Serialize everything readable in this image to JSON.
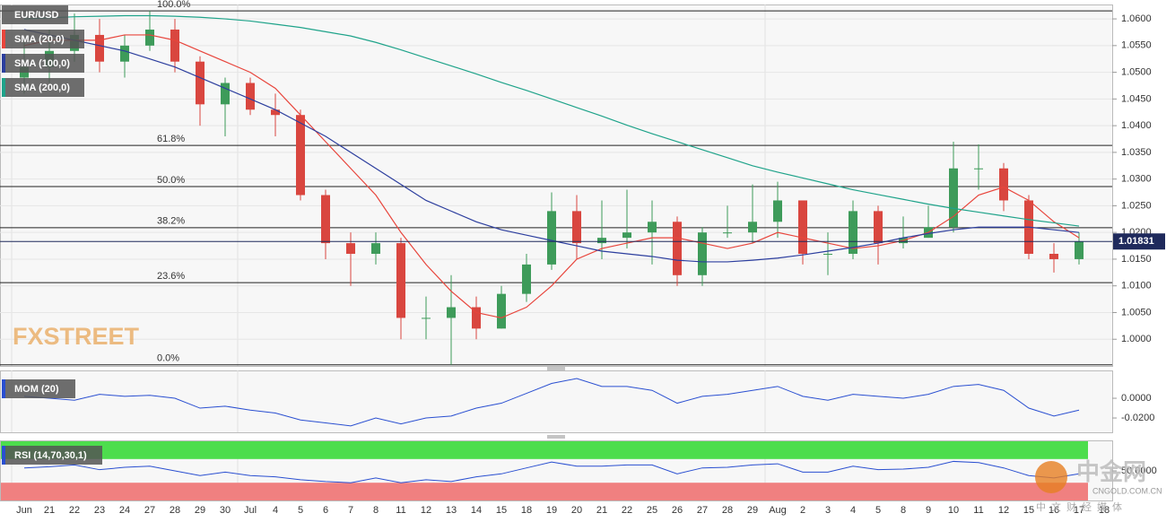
{
  "chart_data": [
    {
      "type": "candlestick",
      "symbol": "EUR/USD",
      "categories": [
        "Jun",
        "21",
        "22",
        "23",
        "24",
        "27",
        "28",
        "29",
        "30",
        "Jul",
        "4",
        "5",
        "6",
        "7",
        "8",
        "11",
        "12",
        "13",
        "14",
        "15",
        "18",
        "19",
        "20",
        "21",
        "22",
        "25",
        "26",
        "27",
        "28",
        "29",
        "Aug",
        "2",
        "3",
        "4",
        "5",
        "8",
        "9",
        "10",
        "11",
        "12",
        "15",
        "16",
        "17",
        "18"
      ],
      "open": [
        1.049,
        1.051,
        1.054,
        1.057,
        1.052,
        1.055,
        1.058,
        1.052,
        1.044,
        1.048,
        1.043,
        1.042,
        1.027,
        1.018,
        1.016,
        1.018,
        1.004,
        1.004,
        1.006,
        1.002,
        1.0085,
        1.014,
        1.024,
        1.018,
        1.019,
        1.02,
        1.022,
        1.012,
        1.02,
        1.02,
        1.022,
        1.026,
        1.016,
        1.016,
        1.024,
        1.018,
        1.019,
        1.021,
        1.032,
        1.032,
        1.026,
        1.016,
        1.015,
        null
      ],
      "high": [
        1.056,
        1.058,
        1.061,
        1.06,
        1.057,
        1.0615,
        1.06,
        1.053,
        1.049,
        1.049,
        1.046,
        1.043,
        1.028,
        1.02,
        1.02,
        1.019,
        1.008,
        1.012,
        1.008,
        1.01,
        1.016,
        1.0275,
        1.027,
        1.026,
        1.028,
        1.026,
        1.023,
        1.021,
        1.025,
        1.029,
        1.0295,
        1.026,
        1.02,
        1.026,
        1.025,
        1.023,
        1.025,
        1.037,
        1.0365,
        1.033,
        1.027,
        1.018,
        1.02,
        null
      ],
      "low": [
        1.046,
        1.048,
        1.052,
        1.05,
        1.049,
        1.054,
        1.05,
        1.04,
        1.038,
        1.042,
        1.038,
        1.026,
        1.015,
        1.01,
        1.014,
        1.0,
        1.0,
        0.9952,
        1.0,
        1.002,
        1.007,
        1.013,
        1.015,
        1.015,
        1.017,
        1.014,
        1.01,
        1.01,
        1.019,
        1.018,
        1.019,
        1.014,
        1.012,
        1.015,
        1.014,
        1.017,
        1.019,
        1.02,
        1.028,
        1.024,
        1.015,
        1.0125,
        1.014,
        null
      ],
      "close": [
        1.051,
        1.054,
        1.057,
        1.052,
        1.055,
        1.058,
        1.052,
        1.044,
        1.048,
        1.043,
        1.042,
        1.027,
        1.018,
        1.016,
        1.018,
        1.004,
        1.004,
        1.006,
        1.002,
        1.0085,
        1.014,
        1.024,
        1.018,
        1.019,
        1.02,
        1.022,
        1.012,
        1.02,
        1.02,
        1.022,
        1.026,
        1.016,
        1.016,
        1.024,
        1.018,
        1.019,
        1.021,
        1.032,
        1.032,
        1.026,
        1.016,
        1.015,
        1.0183,
        null
      ],
      "up_color": "#3e9b5a",
      "down_color": "#d9463f",
      "series": [
        {
          "name": "SMA (20,0)",
          "color": "#e8453c",
          "values": [
            1.055,
            1.056,
            1.056,
            1.056,
            1.057,
            1.057,
            1.056,
            1.054,
            1.052,
            1.05,
            1.047,
            1.042,
            1.037,
            1.032,
            1.027,
            1.02,
            1.014,
            1.009,
            1.005,
            1.004,
            1.006,
            1.01,
            1.015,
            1.017,
            1.018,
            1.019,
            1.019,
            1.018,
            1.017,
            1.018,
            1.02,
            1.019,
            1.018,
            1.017,
            1.0175,
            1.0185,
            1.02,
            1.023,
            1.027,
            1.0285,
            1.026,
            1.022,
            1.019,
            null
          ]
        },
        {
          "name": "SMA (100,0)",
          "color": "#2c3e9e",
          "values": [
            1.058,
            1.057,
            1.056,
            1.055,
            1.054,
            1.0525,
            1.051,
            1.049,
            1.047,
            1.045,
            1.043,
            1.0405,
            1.038,
            1.035,
            1.032,
            1.029,
            1.026,
            1.024,
            1.022,
            1.0205,
            1.0195,
            1.0185,
            1.0175,
            1.0165,
            1.016,
            1.0155,
            1.0148,
            1.0145,
            1.0145,
            1.0148,
            1.0152,
            1.0158,
            1.0165,
            1.0172,
            1.018,
            1.019,
            1.0198,
            1.0205,
            1.021,
            1.021,
            1.021,
            1.0205,
            1.02,
            null
          ]
        },
        {
          "name": "SMA (200,0)",
          "color": "#1fa38a",
          "values": [
            1.06,
            1.0602,
            1.0604,
            1.0605,
            1.0606,
            1.0606,
            1.0605,
            1.0603,
            1.06,
            1.0596,
            1.059,
            1.0584,
            1.0576,
            1.0568,
            1.0556,
            1.0542,
            1.0527,
            1.0512,
            1.0497,
            1.0481,
            1.0466,
            1.045,
            1.0434,
            1.0418,
            1.0401,
            1.0385,
            1.037,
            1.0355,
            1.034,
            1.0325,
            1.0313,
            1.0302,
            1.0291,
            1.028,
            1.0271,
            1.0262,
            1.0253,
            1.0245,
            1.0238,
            1.0231,
            1.0224,
            1.0218,
            1.0212,
            null
          ]
        }
      ],
      "levels": [
        {
          "value": 1.0615,
          "label": "100.0%"
        },
        {
          "value": 1.0363,
          "label": "61.8%"
        },
        {
          "value": 1.0286,
          "label": "50.0%"
        },
        {
          "value": 1.0209,
          "label": "38.2%"
        },
        {
          "value": 1.0106,
          "label": "23.6%"
        },
        {
          "value": 0.9952,
          "label": "0.0%"
        }
      ],
      "last_price": 1.01831,
      "ylim": [
        0.995,
        1.0627
      ],
      "yticks": [
        {
          "value": 1.0,
          "label": "1.0000"
        },
        {
          "value": 1.005,
          "label": "1.0050"
        },
        {
          "value": 1.01,
          "label": "1.0100"
        },
        {
          "value": 1.015,
          "label": "1.0150"
        },
        {
          "value": 1.02,
          "label": "1.0200"
        },
        {
          "value": 1.025,
          "label": "1.0250"
        },
        {
          "value": 1.03,
          "label": "1.0300"
        },
        {
          "value": 1.035,
          "label": "1.0350"
        },
        {
          "value": 1.04,
          "label": "1.0400"
        },
        {
          "value": 1.045,
          "label": "1.0450"
        },
        {
          "value": 1.05,
          "label": "1.0500"
        },
        {
          "value": 1.055,
          "label": "1.0550"
        },
        {
          "value": 1.06,
          "label": "1.0600"
        }
      ],
      "grid": true
    },
    {
      "type": "line",
      "series": [
        {
          "name": "MOM (20)",
          "color": "#2a4fd1",
          "values": [
            0.002,
            0.0,
            -0.002,
            0.004,
            0.002,
            0.003,
            0.0,
            -0.01,
            -0.008,
            -0.012,
            -0.015,
            -0.022,
            -0.025,
            -0.028,
            -0.02,
            -0.026,
            -0.02,
            -0.018,
            -0.01,
            -0.005,
            0.005,
            0.015,
            0.02,
            0.012,
            0.012,
            0.008,
            -0.005,
            0.002,
            0.004,
            0.008,
            0.012,
            0.002,
            -0.002,
            0.004,
            0.002,
            0.0,
            0.004,
            0.012,
            0.014,
            0.008,
            -0.01,
            -0.018,
            -0.012,
            null
          ]
        }
      ],
      "ylim": [
        -0.0345,
        0.0282
      ],
      "yticks": [
        {
          "value": -0.02,
          "label": "-0.0200"
        },
        {
          "value": 0,
          "label": "0.0000"
        }
      ]
    },
    {
      "type": "line",
      "series": [
        {
          "name": "RSI (14,70,30,1)",
          "color": "#2a4fd1",
          "values": [
            55,
            57,
            60,
            52,
            56,
            58,
            50,
            42,
            48,
            42,
            40,
            35,
            32,
            30,
            38,
            30,
            35,
            32,
            40,
            45,
            55,
            65,
            58,
            58,
            60,
            60,
            45,
            55,
            56,
            60,
            62,
            48,
            48,
            58,
            52,
            53,
            56,
            66,
            64,
            55,
            42,
            38,
            45,
            null
          ]
        }
      ],
      "zones": [
        {
          "from": 70,
          "to": 100,
          "color": "#4ddd4d"
        },
        {
          "from": 0,
          "to": 30,
          "color": "#f08080"
        }
      ],
      "ylim": [
        0,
        100
      ],
      "yticks": [
        {
          "value": 50,
          "label": "50.0000"
        }
      ]
    }
  ],
  "watermarks": [
    "FXSTREET",
    "中金网",
    "CNGOLD.COM.CN",
    "中文财经媒体"
  ]
}
